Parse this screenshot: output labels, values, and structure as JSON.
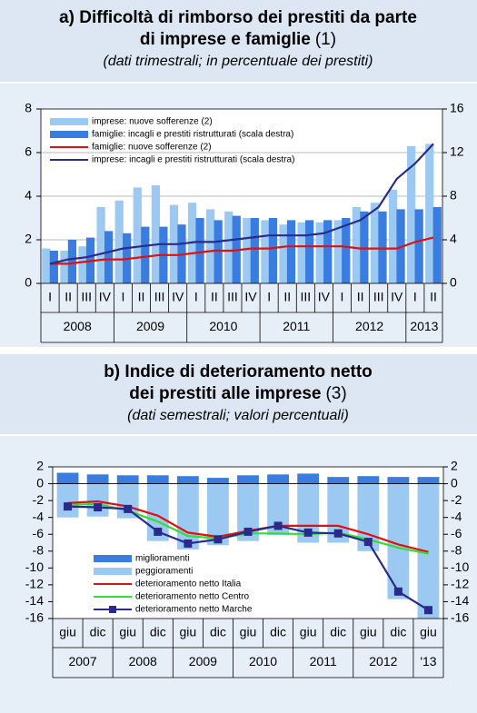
{
  "chart_data": [
    {
      "type": "combo",
      "title": [
        "a) Difficoltà di rimborso dei prestiti da parte",
        "di imprese e famiglie"
      ],
      "title_note": "(1)",
      "subtitle": "(dati trimestrali; in percentuale dei prestiti)",
      "categories": [
        "I",
        "II",
        "III",
        "IV",
        "I",
        "II",
        "III",
        "IV",
        "I",
        "II",
        "III",
        "IV",
        "I",
        "II",
        "III",
        "IV",
        "I",
        "II",
        "III",
        "IV",
        "I",
        "II"
      ],
      "years": [
        "2008",
        "2009",
        "2010",
        "2011",
        "2012",
        "2013"
      ],
      "barmode": "grouped",
      "ylim": [
        0,
        8
      ],
      "yticks": [
        0,
        2,
        4,
        6,
        8
      ],
      "y2lim": [
        0,
        16
      ],
      "y2ticks": [
        0,
        4,
        8,
        12,
        16
      ],
      "grid": true,
      "legend": "upper left",
      "series": [
        {
          "name": "imprese: nuove sofferenze (2)",
          "type": "bar",
          "color": "#9cc9f2",
          "values": [
            1.6,
            1.5,
            1.7,
            3.5,
            3.8,
            4.4,
            4.5,
            3.6,
            3.7,
            3.4,
            3.3,
            3.0,
            2.9,
            2.7,
            2.8,
            2.8,
            2.9,
            3.5,
            3.7,
            4.3,
            6.3,
            6.4
          ]
        },
        {
          "name": "famiglie: incagli e prestiti ristrutturati (scala destra)",
          "type": "bar",
          "axis": "y2",
          "color": "#3a7de0",
          "values": [
            3.0,
            4.0,
            4.2,
            4.8,
            4.6,
            5.2,
            5.2,
            5.4,
            6.0,
            5.8,
            6.2,
            6.0,
            6.0,
            5.8,
            5.8,
            5.8,
            6.0,
            6.6,
            6.6,
            6.8,
            6.8,
            7.0
          ]
        },
        {
          "name": "famiglie: nuove sofferenze (2)",
          "type": "line",
          "color": "#e01010",
          "values": [
            0.9,
            0.9,
            1.0,
            1.1,
            1.1,
            1.2,
            1.3,
            1.3,
            1.4,
            1.5,
            1.5,
            1.6,
            1.6,
            1.7,
            1.7,
            1.7,
            1.7,
            1.6,
            1.6,
            1.6,
            1.9,
            2.1
          ]
        },
        {
          "name": "imprese: incagli e prestiti ristrutturati (scala destra)",
          "type": "line",
          "axis": "y2",
          "color": "#2a2a8c",
          "values": [
            1.8,
            2.2,
            2.4,
            2.8,
            3.2,
            3.4,
            3.6,
            3.6,
            3.8,
            3.8,
            4.0,
            4.2,
            4.4,
            4.4,
            4.4,
            4.6,
            5.2,
            5.8,
            7.0,
            9.6,
            11.0,
            12.8
          ]
        }
      ]
    },
    {
      "type": "combo",
      "title": [
        "b) Indice di deterioramento netto",
        "dei prestiti alle imprese"
      ],
      "title_note": "(3)",
      "subtitle": "(dati semestrali; valori percentuali)",
      "categories": [
        "giu",
        "dic",
        "giu",
        "dic",
        "giu",
        "dic",
        "giu",
        "dic",
        "giu",
        "dic",
        "giu",
        "dic",
        "giu"
      ],
      "years": [
        "2007",
        "2008",
        "2009",
        "2010",
        "2011",
        "2012",
        "'13"
      ],
      "barmode": "overlay",
      "ylim": [
        -16,
        2
      ],
      "yticks": [
        -16,
        -14,
        -12,
        -10,
        -8,
        -6,
        -4,
        -2,
        0,
        2
      ],
      "y2lim": [
        -16,
        2
      ],
      "y2ticks": [
        -16,
        -14,
        -12,
        -10,
        -8,
        -6,
        -4,
        -2,
        0,
        2
      ],
      "grid": false,
      "legend": "lower left",
      "series": [
        {
          "name": "miglioramenti",
          "type": "bar",
          "color": "#3a7de0",
          "values": [
            1.3,
            1.1,
            1.0,
            1.0,
            0.9,
            0.7,
            1.0,
            1.1,
            1.2,
            0.8,
            0.9,
            0.8,
            0.8
          ]
        },
        {
          "name": "peggioramenti",
          "type": "bar",
          "color": "#9cc9f2",
          "values": [
            -4.0,
            -3.9,
            -4.1,
            -6.8,
            -7.8,
            -7.3,
            -6.8,
            -6.1,
            -7.0,
            -7.0,
            -8.0,
            -13.7,
            -16.0
          ]
        },
        {
          "name": "deterioramento netto Italia",
          "type": "line",
          "color": "#e01010",
          "values": [
            -2.3,
            -2.1,
            -2.7,
            -3.8,
            -5.8,
            -6.3,
            -5.6,
            -5.0,
            -5.0,
            -5.0,
            -6.0,
            -7.2,
            -8.1
          ]
        },
        {
          "name": "deterioramento netto Centro",
          "type": "line",
          "color": "#33dd33",
          "values": [
            -2.5,
            -2.4,
            -3.2,
            -4.5,
            -6.2,
            -6.5,
            -5.9,
            -5.9,
            -6.0,
            -5.8,
            -6.6,
            -7.6,
            -8.3
          ]
        },
        {
          "name": "deterioramento netto Marche",
          "type": "line",
          "color": "#2a2a8c",
          "marker": "square",
          "values": [
            -2.7,
            -2.8,
            -3.0,
            -5.7,
            -7.1,
            -6.6,
            -5.7,
            -5.0,
            -5.8,
            -5.9,
            -6.9,
            -12.8,
            -15.0
          ]
        }
      ]
    }
  ]
}
